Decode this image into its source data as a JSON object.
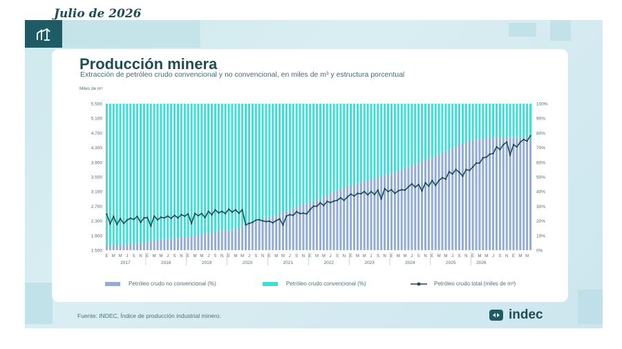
{
  "header": {
    "date": "Julio de 2026",
    "logo_icon": "oil-pump-icon"
  },
  "title": "Producción minera",
  "subtitle": "Extracción de petróleo crudo convencional y no convencional, en miles de m³ y estructura porcentual",
  "unit_label": "Miles de m³",
  "legend": {
    "non_conventional": "Petróleo crudo no convencional (%)",
    "conventional": "Petróleo crudo convencional (%)",
    "total": "Petróleo crudo total (miles de m³)"
  },
  "source": "Fuente: INDEC, Índice de producción industrial minero.",
  "brand": {
    "name": "indec",
    "icon": "indec-logo-icon"
  },
  "colors": {
    "non_conventional": "#93acd6",
    "conventional": "#3fded6",
    "total": "#1d4a54",
    "accent": "#1f5b64"
  },
  "chart_data": {
    "type": "bar-line",
    "left_axis": {
      "ylim": [
        1500,
        5500
      ],
      "ticks": [
        "1.500",
        "1.900",
        "2.300",
        "2.700",
        "3.100",
        "3.500",
        "3.900",
        "4.300",
        "4.700",
        "5.100",
        "5.500"
      ]
    },
    "right_axis": {
      "ylim": [
        0,
        100
      ],
      "ticks": [
        "0%",
        "10%",
        "20%",
        "30%",
        "40%",
        "50%",
        "60%",
        "70%",
        "80%",
        "90%",
        "100%"
      ]
    },
    "years": [
      "2017",
      "2018",
      "2019",
      "2020",
      "2021",
      "2022",
      "2023",
      "2024",
      "2025",
      "2026"
    ],
    "month_letters": [
      "E",
      "F",
      "M",
      "A",
      "M",
      "J",
      "J",
      "A",
      "S",
      "O",
      "N",
      "D"
    ],
    "months_in_last_year": 6,
    "non_conventional_pct_yearly": [
      [
        2017,
        3,
        5
      ],
      [
        2018,
        6,
        9
      ],
      [
        2019,
        9,
        14
      ],
      [
        2020,
        13,
        22
      ],
      [
        2021,
        22,
        32
      ],
      [
        2022,
        32,
        44
      ],
      [
        2023,
        44,
        52
      ],
      [
        2024,
        52,
        63
      ],
      [
        2025,
        63,
        75
      ],
      [
        2026,
        75,
        77
      ]
    ],
    "total_monthly": [
      2480,
      2220,
      2420,
      2200,
      2360,
      2230,
      2320,
      2370,
      2340,
      2420,
      2260,
      2380,
      2390,
      2160,
      2430,
      2330,
      2400,
      2380,
      2430,
      2370,
      2450,
      2380,
      2470,
      2430,
      2490,
      2230,
      2500,
      2440,
      2500,
      2390,
      2560,
      2470,
      2600,
      2520,
      2560,
      2500,
      2620,
      2540,
      2600,
      2510,
      2600,
      2190,
      2230,
      2260,
      2320,
      2330,
      2300,
      2280,
      2290,
      2250,
      2310,
      2350,
      2190,
      2430,
      2470,
      2450,
      2550,
      2500,
      2510,
      2490,
      2610,
      2700,
      2700,
      2790,
      2720,
      2830,
      2800,
      2840,
      2860,
      2930,
      2860,
      2950,
      3030,
      2980,
      3050,
      3040,
      3100,
      3010,
      3100,
      3020,
      3140,
      2900,
      3180,
      3100,
      3150,
      3050,
      3120,
      3150,
      3140,
      3230,
      3310,
      3220,
      3290,
      3120,
      3340,
      3250,
      3400,
      3270,
      3400,
      3480,
      3440,
      3640,
      3580,
      3700,
      3630,
      3520,
      3700,
      3680,
      3770,
      3880,
      3880,
      4020,
      4040,
      4120,
      4140,
      4320,
      4250,
      4380,
      4450,
      4100,
      4380,
      4320,
      4450,
      4520,
      4480,
      4620
    ]
  }
}
